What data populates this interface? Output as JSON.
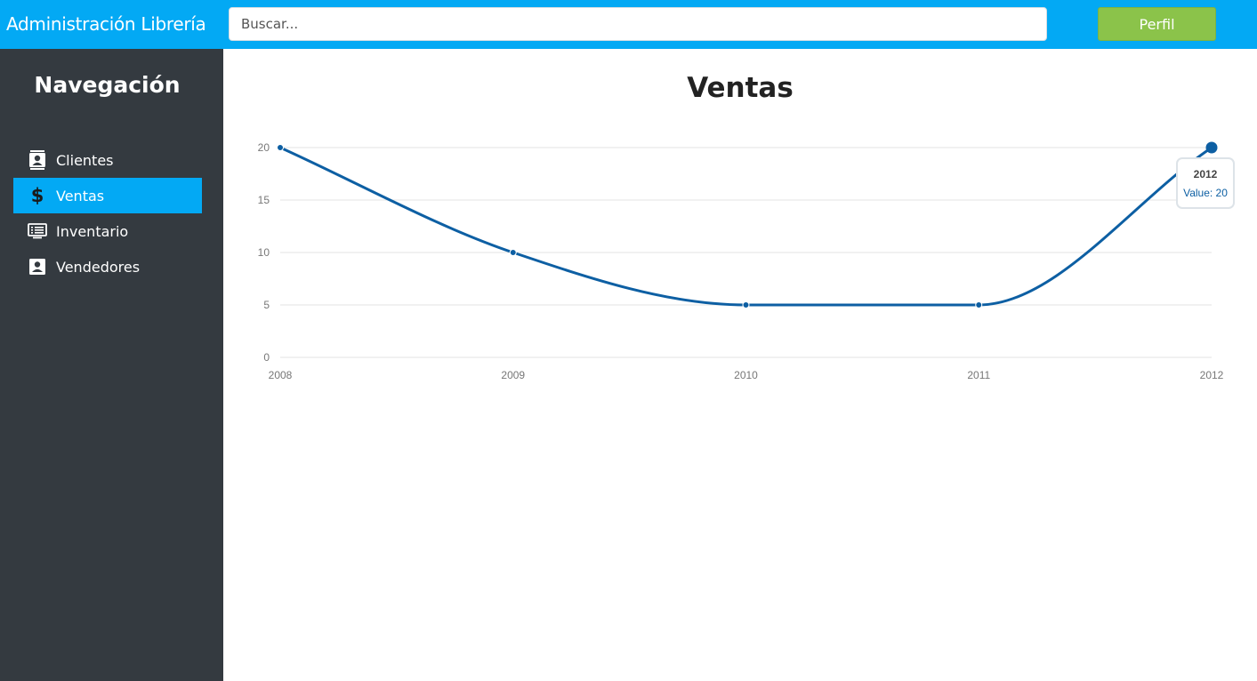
{
  "header": {
    "brand": "Administración Librería",
    "search_placeholder": "Buscar...",
    "profile_label": "Perfil"
  },
  "sidebar": {
    "title": "Navegación",
    "items": [
      {
        "label": "Clientes",
        "icon": "contact-card-icon",
        "active": false
      },
      {
        "label": "Ventas",
        "icon": "dollar-icon",
        "active": true
      },
      {
        "label": "Inventario",
        "icon": "list-monitor-icon",
        "active": false
      },
      {
        "label": "Vendedores",
        "icon": "person-badge-icon",
        "active": false
      }
    ]
  },
  "main": {
    "title": "Ventas"
  },
  "colors": {
    "topbar": "#03a9f4",
    "sidebar": "#343a40",
    "active_item": "#03a9f4",
    "profile_button": "#8bc34a",
    "line": "#0d5fa3"
  },
  "chart_data": {
    "type": "line",
    "x": [
      "2008",
      "2009",
      "2010",
      "2011",
      "2012"
    ],
    "series": [
      {
        "values": [
          20,
          10,
          5,
          5,
          20
        ]
      }
    ],
    "ylim": [
      0,
      20
    ],
    "yticks": [
      0,
      5,
      10,
      15,
      20
    ],
    "grid": true,
    "tooltip": {
      "title": "2012",
      "text": "Value: 20"
    }
  }
}
